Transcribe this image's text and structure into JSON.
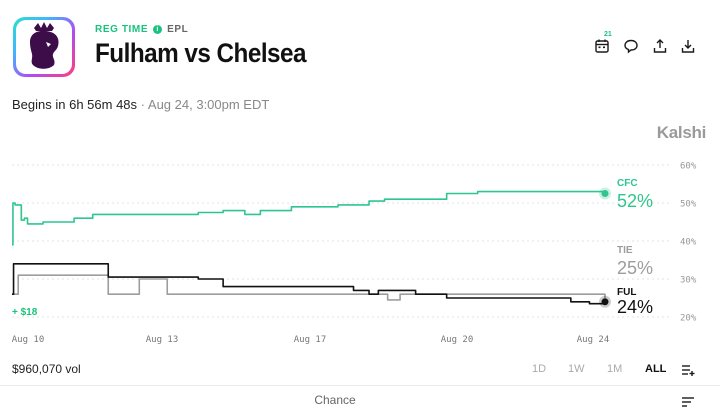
{
  "header": {
    "status": "REG TIME",
    "league": "EPL",
    "title": "Fulham vs Chelsea",
    "calendar_badge": "21"
  },
  "countdown": {
    "begins": "Begins in 6h 56m 48s",
    "separator": "·",
    "datetime": "Aug 24, 3:00pm EDT"
  },
  "brand": "Kalshi",
  "chart_data": {
    "type": "line",
    "x_labels": [
      "Aug 10",
      "Aug 13",
      "Aug 17",
      "Aug 20",
      "Aug 24"
    ],
    "y_ticks": [
      "60%",
      "50%",
      "40%",
      "30%",
      "20%"
    ],
    "ylim": [
      17,
      60
    ],
    "grid": true,
    "series": [
      {
        "name": "CFC",
        "color": "#2ec58f",
        "current": "52%",
        "points": [
          [
            0,
            39
          ],
          [
            0.3,
            50
          ],
          [
            1,
            49.5
          ],
          [
            2,
            49.5
          ],
          [
            3,
            45.5
          ],
          [
            4,
            46
          ],
          [
            5,
            44.5
          ],
          [
            8,
            44.5
          ],
          [
            10,
            45
          ],
          [
            15,
            45
          ],
          [
            20,
            46
          ],
          [
            25,
            46
          ],
          [
            26,
            47
          ],
          [
            30,
            47
          ],
          [
            35,
            47
          ],
          [
            40,
            47
          ],
          [
            50,
            47
          ],
          [
            55,
            47
          ],
          [
            60,
            47.5
          ],
          [
            65,
            47.5
          ],
          [
            68,
            48
          ],
          [
            75,
            47
          ],
          [
            80,
            48
          ],
          [
            85,
            48
          ],
          [
            90,
            49
          ],
          [
            100,
            49
          ],
          [
            105,
            49.5
          ],
          [
            110,
            49.5
          ],
          [
            115,
            50.5
          ],
          [
            120,
            51
          ],
          [
            125,
            51
          ],
          [
            130,
            51
          ],
          [
            140,
            52.5
          ],
          [
            150,
            53
          ],
          [
            160,
            53
          ],
          [
            170,
            53
          ],
          [
            180,
            53
          ],
          [
            185,
            53
          ],
          [
            191,
            52.5
          ]
        ]
      },
      {
        "name": "TIE",
        "color": "#9d9d9d",
        "current": "25%",
        "points": [
          [
            0,
            26
          ],
          [
            2,
            31
          ],
          [
            10,
            31
          ],
          [
            20,
            31
          ],
          [
            30,
            31
          ],
          [
            31,
            26
          ],
          [
            40,
            26
          ],
          [
            41,
            30
          ],
          [
            49,
            30
          ],
          [
            50,
            26
          ],
          [
            60,
            26
          ],
          [
            70,
            26
          ],
          [
            75,
            26
          ],
          [
            80,
            26
          ],
          [
            90,
            26
          ],
          [
            100,
            26
          ],
          [
            110,
            26
          ],
          [
            120,
            26
          ],
          [
            121,
            24.5
          ],
          [
            124,
            24.5
          ],
          [
            125,
            26
          ],
          [
            140,
            26
          ],
          [
            160,
            26
          ],
          [
            180,
            26
          ],
          [
            191,
            25
          ]
        ]
      },
      {
        "name": "FUL",
        "color": "#111111",
        "current": "24%",
        "points": [
          [
            0,
            26
          ],
          [
            0.5,
            34
          ],
          [
            10,
            34
          ],
          [
            20,
            34
          ],
          [
            30,
            34
          ],
          [
            31,
            30.5
          ],
          [
            40,
            30.5
          ],
          [
            50,
            30.5
          ],
          [
            60,
            30
          ],
          [
            65,
            30
          ],
          [
            68,
            28
          ],
          [
            80,
            28
          ],
          [
            90,
            28
          ],
          [
            100,
            28
          ],
          [
            110,
            27
          ],
          [
            115,
            26
          ],
          [
            118,
            27
          ],
          [
            130,
            26
          ],
          [
            140,
            25
          ],
          [
            150,
            25
          ],
          [
            160,
            25
          ],
          [
            170,
            25
          ],
          [
            180,
            24
          ],
          [
            186,
            23.5
          ],
          [
            191,
            24
          ]
        ]
      }
    ],
    "x_range": [
      0,
      191
    ],
    "annotation": "+ $18"
  },
  "footer": {
    "volume": "$960,070 vol",
    "ranges": [
      "1D",
      "1W",
      "1M",
      "ALL"
    ],
    "active_range": "ALL",
    "chance_label": "Chance"
  },
  "icons": [
    "premier-league-logo",
    "calendar-icon",
    "comment-icon",
    "share-icon",
    "download-icon",
    "list-add-icon",
    "sort-icon"
  ]
}
